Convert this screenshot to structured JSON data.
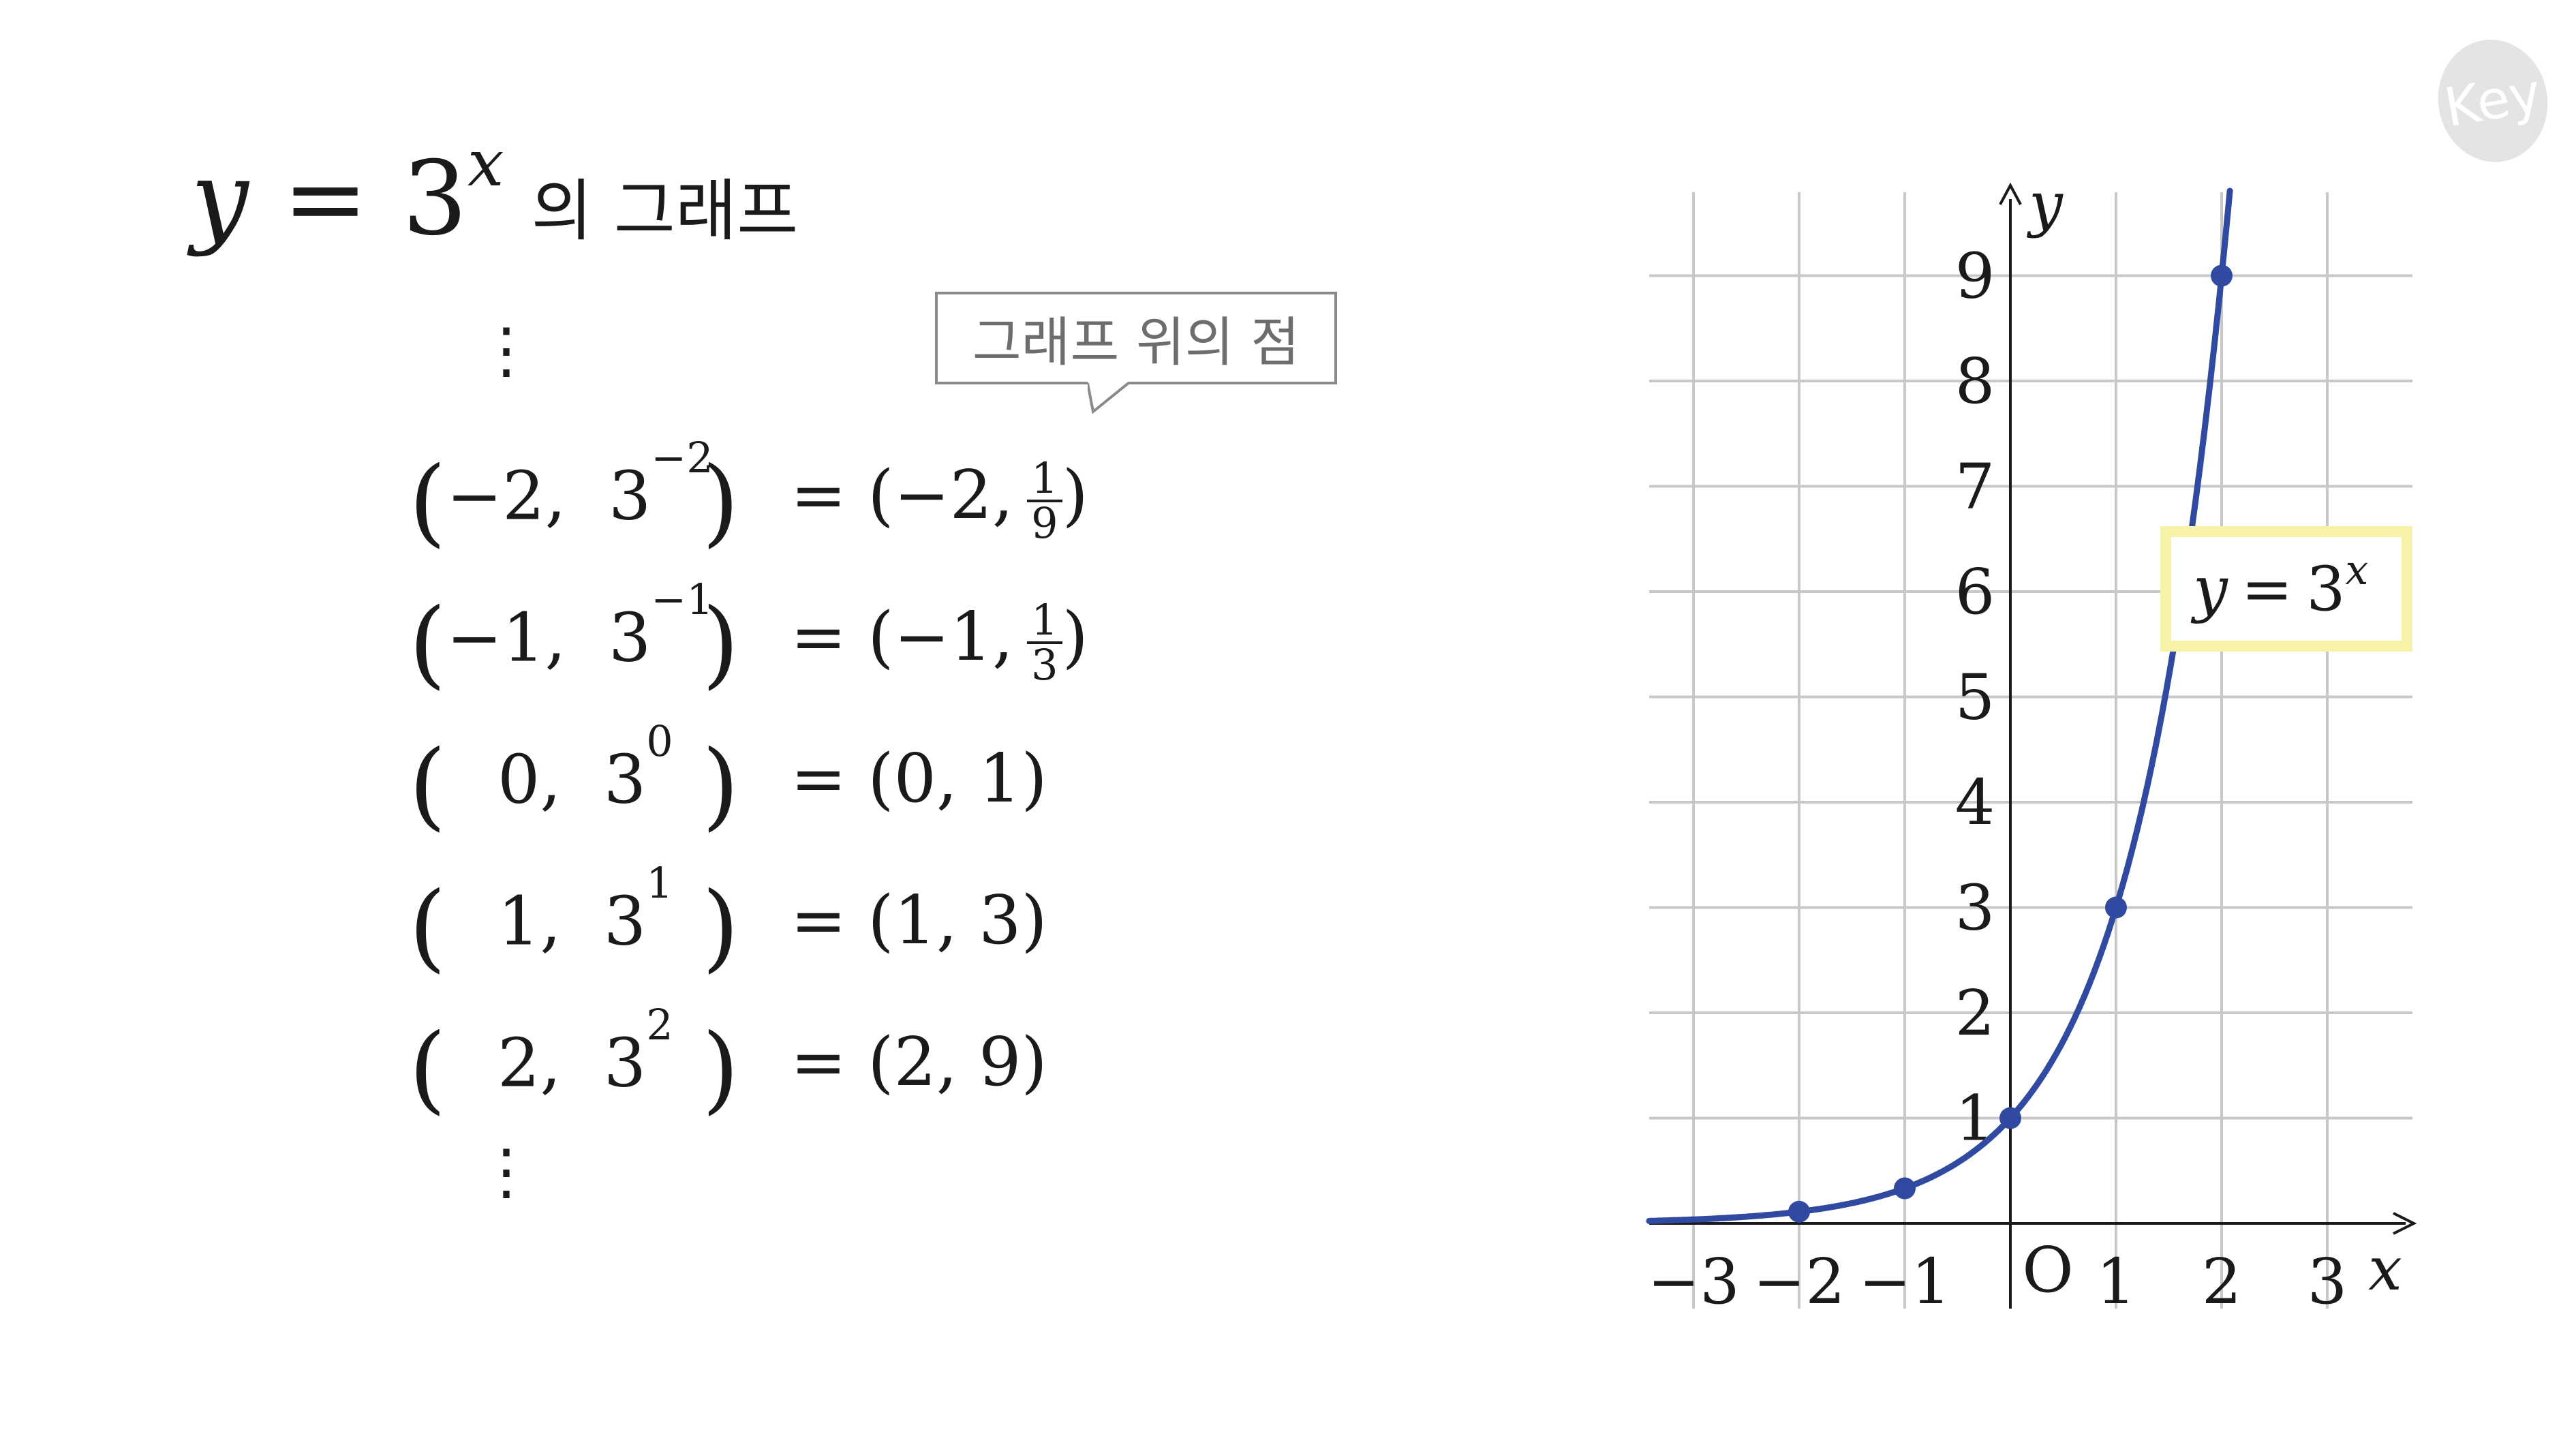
{
  "title": {
    "var": "y",
    "eq": "=",
    "base": "3",
    "exp": "x",
    "suffix": "의 그래프"
  },
  "callout": {
    "text": "그래프 위의 점"
  },
  "vdots": "⋮",
  "rows": [
    {
      "x": "−2,",
      "base": "3",
      "exp": "−2",
      "rhs_prefix": "= (−2,",
      "num": "1",
      "den": "9",
      "rhs_suffix": ")"
    },
    {
      "x": "−1,",
      "base": "3",
      "exp": "−1",
      "rhs_prefix": "= (−1,",
      "num": "1",
      "den": "3",
      "rhs_suffix": ")"
    },
    {
      "x": "0,",
      "base": "3",
      "exp": "0",
      "rhs": "= (0,  1)"
    },
    {
      "x": "1,",
      "base": "3",
      "exp": "1",
      "rhs": "= (1,  3)"
    },
    {
      "x": "2,",
      "base": "3",
      "exp": "2",
      "rhs": "= (2,  9)"
    }
  ],
  "logo": {
    "text": "Key"
  },
  "chart_data": {
    "type": "line",
    "function": "y = 3^x",
    "label_var": "y",
    "label_eq": "=",
    "label_base": "3",
    "label_exp": "x",
    "xlabel": "x",
    "ylabel": "y",
    "origin_label": "O",
    "xlim": [
      -3.5,
      3.8
    ],
    "ylim": [
      0,
      9.8
    ],
    "x_ticks": [
      -3,
      -2,
      -1,
      1,
      2,
      3
    ],
    "x_tick_labels": [
      "−3",
      "−2",
      "−1",
      "1",
      "2",
      "3"
    ],
    "y_ticks": [
      1,
      2,
      3,
      4,
      5,
      6,
      7,
      8,
      9
    ],
    "y_tick_labels": [
      "1",
      "2",
      "3",
      "4",
      "5",
      "6",
      "7",
      "8",
      "9"
    ],
    "grid": true,
    "points": [
      {
        "x": -2,
        "y": 0.111
      },
      {
        "x": -1,
        "y": 0.333
      },
      {
        "x": 0,
        "y": 1
      },
      {
        "x": 1,
        "y": 3
      },
      {
        "x": 2,
        "y": 9
      }
    ],
    "colors": {
      "curve": "#2f4aa0",
      "grid": "#c8c8c8",
      "label_box": "#f6f2a8",
      "axis": "#1a1a1a"
    }
  }
}
